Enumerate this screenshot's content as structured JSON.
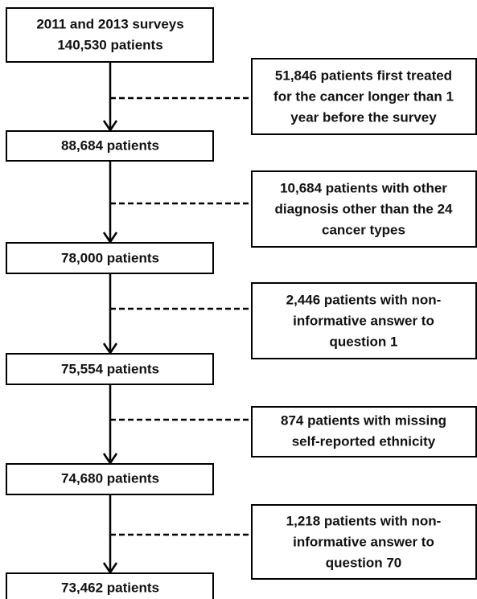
{
  "nodes": [
    {
      "lines": [
        "2011 and 2013 surveys",
        "140,530 patients"
      ]
    },
    {
      "lines": [
        "88,684 patients"
      ]
    },
    {
      "lines": [
        "78,000 patients"
      ]
    },
    {
      "lines": [
        "75,554 patients"
      ]
    },
    {
      "lines": [
        "74,680 patients"
      ]
    },
    {
      "lines": [
        "73,462 patients"
      ]
    }
  ],
  "exclusions": [
    {
      "lines": [
        "51,846 patients first treated",
        "for the cancer longer than 1",
        "year before the survey"
      ]
    },
    {
      "lines": [
        "10,684 patients with other",
        "diagnosis other than the 24",
        "cancer types"
      ]
    },
    {
      "lines": [
        "2,446 patients with non-",
        "informative answer to",
        "question 1"
      ]
    },
    {
      "lines": [
        "874 patients with missing",
        "self-reported ethnicity"
      ]
    },
    {
      "lines": [
        "1,218 patients with non-",
        "informative answer to",
        "question 70"
      ]
    }
  ]
}
